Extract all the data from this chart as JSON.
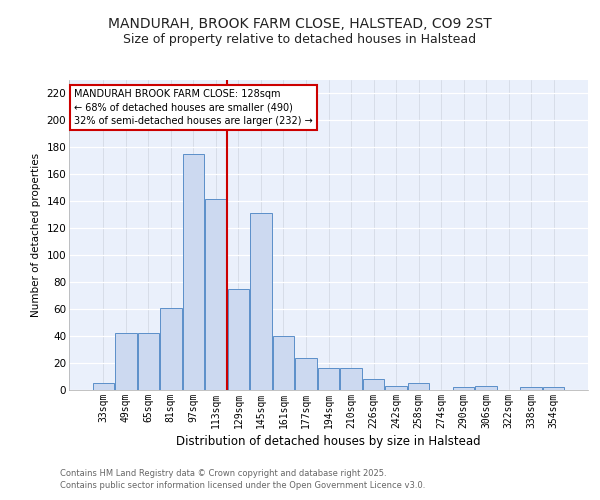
{
  "title1": "MANDURAH, BROOK FARM CLOSE, HALSTEAD, CO9 2ST",
  "title2": "Size of property relative to detached houses in Halstead",
  "xlabel": "Distribution of detached houses by size in Halstead",
  "ylabel": "Number of detached properties",
  "categories": [
    "33sqm",
    "49sqm",
    "65sqm",
    "81sqm",
    "97sqm",
    "113sqm",
    "129sqm",
    "145sqm",
    "161sqm",
    "177sqm",
    "194sqm",
    "210sqm",
    "226sqm",
    "242sqm",
    "258sqm",
    "274sqm",
    "290sqm",
    "306sqm",
    "322sqm",
    "338sqm",
    "354sqm"
  ],
  "values": [
    5,
    42,
    42,
    61,
    175,
    142,
    75,
    131,
    40,
    24,
    16,
    16,
    8,
    3,
    5,
    0,
    2,
    3,
    0,
    2,
    2
  ],
  "bar_color": "#ccd9f0",
  "bar_edge_color": "#5b8fc9",
  "red_line_index": 6,
  "annotation_text": "MANDURAH BROOK FARM CLOSE: 128sqm\n← 68% of detached houses are smaller (490)\n32% of semi-detached houses are larger (232) →",
  "annotation_box_color": "#ffffff",
  "annotation_box_edge": "#cc0000",
  "ylim": [
    0,
    230
  ],
  "yticks": [
    0,
    20,
    40,
    60,
    80,
    100,
    120,
    140,
    160,
    180,
    200,
    220
  ],
  "background_color": "#eaf0fb",
  "grid_color": "#d8dde8",
  "footer_line1": "Contains HM Land Registry data © Crown copyright and database right 2025.",
  "footer_line2": "Contains public sector information licensed under the Open Government Licence v3.0.",
  "title1_fontsize": 10,
  "title2_fontsize": 9
}
